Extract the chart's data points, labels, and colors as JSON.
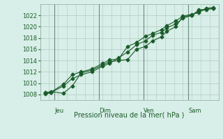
{
  "background_color": "#d8eee8",
  "plot_bg_color": "#d8eee8",
  "grid_color": "#b0c8c0",
  "line_color": "#1a5c2a",
  "marker_color": "#1a5c2a",
  "xlabel": "Pression niveau de la mer( hPa )",
  "ylim": [
    1007,
    1024
  ],
  "yticks": [
    1008,
    1010,
    1012,
    1014,
    1016,
    1018,
    1020,
    1022
  ],
  "day_labels": [
    "Jeu",
    "Dim",
    "Ven",
    "Sam"
  ],
  "day_positions": [
    0.08,
    0.33,
    0.58,
    0.83
  ],
  "series1_x": [
    0.03,
    0.06,
    0.13,
    0.18,
    0.23,
    0.29,
    0.35,
    0.39,
    0.44,
    0.49,
    0.54,
    0.59,
    0.63,
    0.68,
    0.71,
    0.76,
    0.8,
    0.85,
    0.89,
    0.93,
    0.97
  ],
  "series1_y": [
    1008.3,
    1008.5,
    1008.2,
    1009.5,
    1011.8,
    1012.3,
    1013.2,
    1013.8,
    1014.0,
    1014.2,
    1016.0,
    1016.5,
    1017.5,
    1018.2,
    1019.2,
    1020.0,
    1021.8,
    1022.0,
    1023.0,
    1023.1,
    1023.2
  ],
  "series2_x": [
    0.03,
    0.06,
    0.13,
    0.18,
    0.23,
    0.29,
    0.35,
    0.39,
    0.44,
    0.49,
    0.54,
    0.59,
    0.63,
    0.68,
    0.71,
    0.76,
    0.8,
    0.85,
    0.89,
    0.93,
    0.97
  ],
  "series2_y": [
    1008.2,
    1008.4,
    1009.8,
    1011.5,
    1012.0,
    1012.5,
    1013.5,
    1014.1,
    1014.3,
    1016.5,
    1017.2,
    1018.3,
    1018.8,
    1019.5,
    1020.2,
    1021.0,
    1021.9,
    1022.2,
    1022.5,
    1023.3,
    1023.4
  ],
  "series3_x": [
    0.03,
    0.06,
    0.13,
    0.18,
    0.23,
    0.29,
    0.35,
    0.39,
    0.44,
    0.49,
    0.54,
    0.59,
    0.63,
    0.68,
    0.71,
    0.76,
    0.8,
    0.85,
    0.89,
    0.93,
    0.97
  ],
  "series3_y": [
    1008.1,
    1008.3,
    1009.5,
    1010.8,
    1011.5,
    1012.0,
    1013.0,
    1013.5,
    1014.5,
    1015.5,
    1016.8,
    1017.5,
    1018.5,
    1019.0,
    1019.8,
    1020.5,
    1021.5,
    1022.0,
    1022.8,
    1023.0,
    1023.3
  ]
}
